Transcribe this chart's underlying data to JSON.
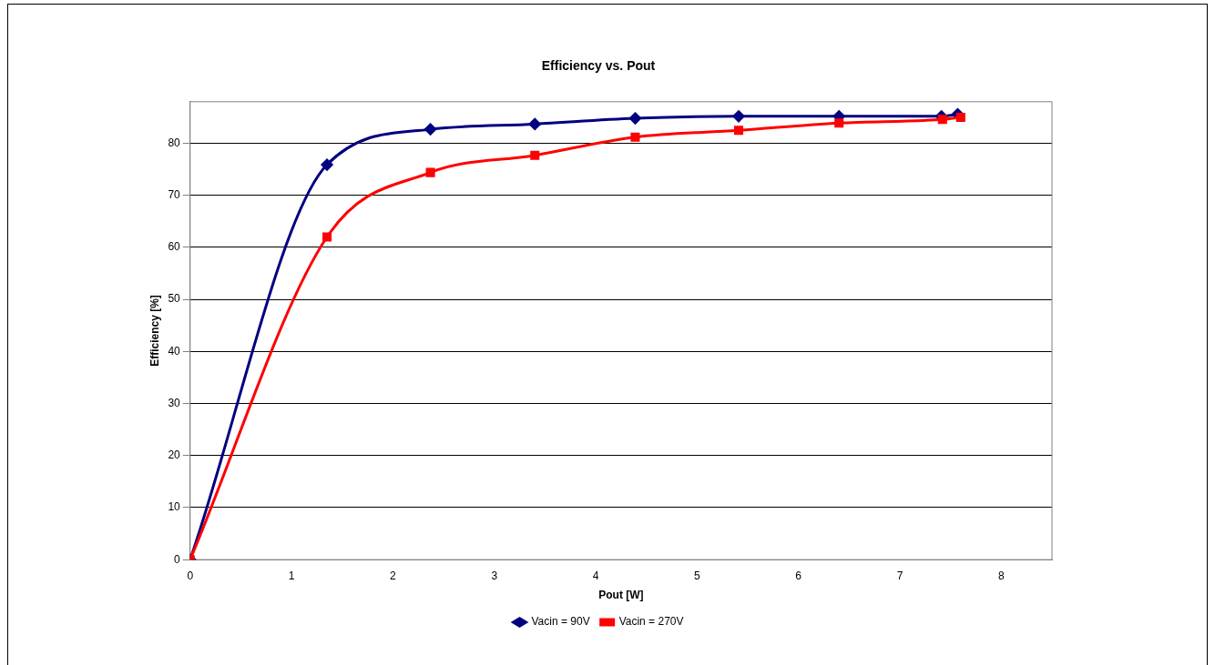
{
  "chart_data": {
    "type": "line",
    "title": "Efficiency vs. Pout",
    "xlabel": "Pout [W]",
    "ylabel": "Efficiency [%]",
    "xlim": [
      0,
      8.5
    ],
    "xticks": [
      0,
      1,
      2,
      3,
      4,
      5,
      6,
      7,
      8
    ],
    "ylim": [
      0,
      88
    ],
    "yticks": [
      0,
      10,
      20,
      30,
      40,
      50,
      60,
      70,
      80
    ],
    "grid": "y",
    "legend": "bottom",
    "series": [
      {
        "name": "Vacin = 90V",
        "color": "#000080",
        "marker": "diamond",
        "x": [
          0,
          1.35,
          2.37,
          3.4,
          4.39,
          5.41,
          6.4,
          7.41,
          7.57
        ],
        "values": [
          0,
          75.9,
          82.7,
          83.7,
          84.8,
          85.2,
          85.2,
          85.2,
          85.6
        ]
      },
      {
        "name": "Vacin = 270V",
        "color": "#ff0000",
        "marker": "square",
        "x": [
          0,
          1.35,
          2.37,
          3.4,
          4.39,
          5.41,
          6.4,
          7.42,
          7.6
        ],
        "values": [
          0,
          62.0,
          74.4,
          77.7,
          81.2,
          82.5,
          83.9,
          84.6,
          85.0
        ]
      }
    ]
  }
}
